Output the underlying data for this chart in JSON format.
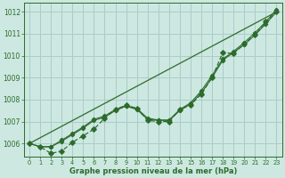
{
  "title": "Graphe pression niveau de la mer (hPa)",
  "bg_color": "#cce8e0",
  "grid_color": "#aacccc",
  "line_color": "#2d6b2d",
  "xlim": [
    -0.5,
    23.5
  ],
  "ylim": [
    1005.4,
    1012.4
  ],
  "yticks": [
    1006,
    1007,
    1008,
    1009,
    1010,
    1011,
    1012
  ],
  "xticks": [
    0,
    1,
    2,
    3,
    4,
    5,
    6,
    7,
    8,
    9,
    10,
    11,
    12,
    13,
    14,
    15,
    16,
    17,
    18,
    19,
    20,
    21,
    22,
    23
  ],
  "series_straight": {
    "x": [
      0,
      23
    ],
    "y": [
      1006.0,
      1012.0
    ]
  },
  "series_smooth1": {
    "x": [
      0,
      1,
      2,
      3,
      4,
      5,
      6,
      7,
      8,
      9,
      10,
      11,
      12,
      13,
      14,
      15,
      16,
      17,
      18,
      19,
      20,
      21,
      22,
      23
    ],
    "y": [
      1006.0,
      1005.85,
      1005.85,
      1006.1,
      1006.4,
      1006.7,
      1007.05,
      1007.2,
      1007.5,
      1007.7,
      1007.55,
      1007.1,
      1007.05,
      1007.05,
      1007.5,
      1007.8,
      1008.3,
      1009.0,
      1009.8,
      1010.15,
      1010.5,
      1010.95,
      1011.45,
      1012.0
    ]
  },
  "series_smooth2": {
    "x": [
      0,
      1,
      2,
      3,
      4,
      5,
      6,
      7,
      8,
      9,
      10,
      11,
      12,
      13,
      14,
      15,
      16,
      17,
      18,
      19,
      20,
      21,
      22,
      23
    ],
    "y": [
      1006.0,
      1005.85,
      1005.85,
      1006.15,
      1006.45,
      1006.75,
      1007.1,
      1007.25,
      1007.55,
      1007.72,
      1007.6,
      1007.15,
      1007.07,
      1007.07,
      1007.55,
      1007.85,
      1008.4,
      1009.1,
      1009.85,
      1010.2,
      1010.6,
      1011.05,
      1011.55,
      1012.1
    ]
  },
  "series_dotted": {
    "x": [
      0,
      1,
      2,
      3,
      4,
      5,
      6,
      7,
      8,
      9,
      10,
      11,
      12,
      13,
      14,
      15,
      16,
      17,
      18,
      19,
      20,
      21,
      22,
      23
    ],
    "y": [
      1006.0,
      1005.85,
      1005.55,
      1005.65,
      1006.05,
      1006.35,
      1006.65,
      1007.15,
      1007.55,
      1007.75,
      1007.6,
      1007.05,
      1007.0,
      1007.0,
      1007.55,
      1007.75,
      1008.25,
      1009.0,
      1010.15,
      1010.1,
      1010.55,
      1010.95,
      1011.55,
      1012.0
    ]
  }
}
